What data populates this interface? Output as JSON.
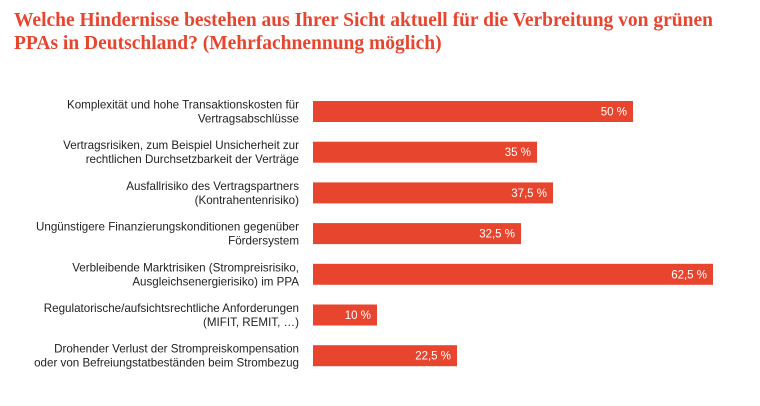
{
  "chart_data": {
    "type": "bar",
    "orientation": "horizontal",
    "title": "Welche Hindernisse bestehen aus Ihrer Sicht aktuell für die Verbreitung von grünen PPAs in Deutschland? (Mehrfachnennung möglich)",
    "categories": [
      [
        "Komplexität und hohe Transaktionskosten für",
        "Vertragsabschlüsse"
      ],
      [
        "Vertragsrisiken, zum Beispiel Unsicherheit zur",
        "rechtlichen Durchsetzbarkeit der Verträge"
      ],
      [
        "Ausfallrisiko des Vertragspartners",
        "(Kontrahentenrisiko)"
      ],
      [
        "Ungünstigere Finanzierungskonditionen gegenüber",
        "Fördersystem"
      ],
      [
        "Verbleibende Marktrisiken (Strompreisrisiko,",
        "Ausgleichsenergierisiko) im PPA"
      ],
      [
        "Regulatorische/aufsichtsrechtliche Anforderungen",
        "(MIFIT, REMIT, …)"
      ],
      [
        "Drohender Verlust der Strompreiskompensation",
        "oder von Befreiungstatbeständen beim Strombezug"
      ]
    ],
    "values": [
      50,
      35,
      37.5,
      32.5,
      62.5,
      10,
      22.5
    ],
    "value_labels": [
      "50 %",
      "35 %",
      "37,5 %",
      "32,5 %",
      "62,5 %",
      "10 %",
      "22,5 %"
    ],
    "xlim": [
      0,
      62.5
    ],
    "grid": false,
    "bar_color": "#e8452f"
  }
}
